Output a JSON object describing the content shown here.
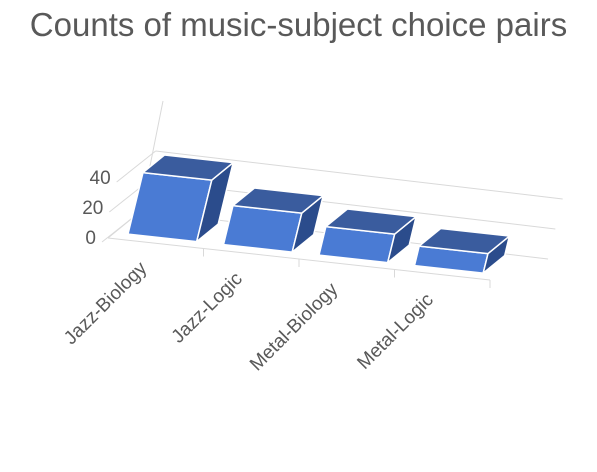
{
  "chart_data": {
    "type": "bar",
    "title": "Counts of music-subject choice pairs",
    "categories": [
      "Jazz-Biology",
      "Jazz-Logic",
      "Metal-Biology",
      "Metal-Logic"
    ],
    "values": [
      41,
      26,
      19,
      13
    ],
    "yticks": [
      "0",
      "20",
      "40"
    ],
    "ylim": [
      0,
      60
    ],
    "grid": true,
    "legend": "none",
    "three_d": true,
    "colors": {
      "front": "#4a7bd4",
      "top": "#3a5c9e",
      "side": "#2b4c8c",
      "edge": "#ffffff",
      "grid": "#d9d9d9",
      "text": "#595959"
    }
  }
}
